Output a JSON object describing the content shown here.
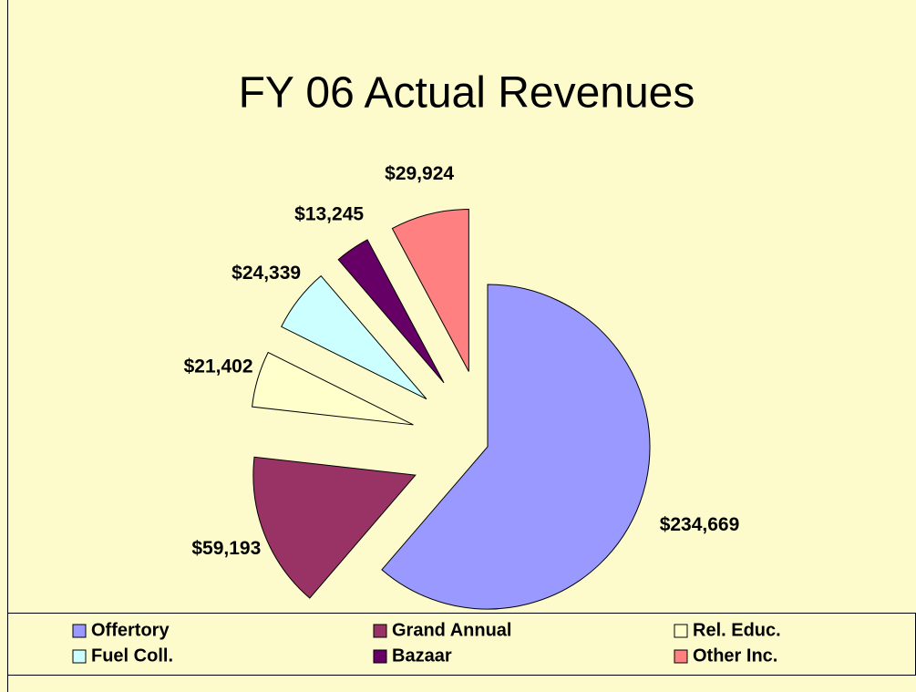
{
  "chart_data": {
    "type": "pie",
    "title": "FY 06 Actual Revenues",
    "categories": [
      "Offertory",
      "Grand Annual",
      "Rel. Educ.",
      "Fuel Coll.",
      "Bazaar",
      "Other Inc."
    ],
    "values": [
      234669,
      59193,
      21402,
      24339,
      13245,
      29924
    ],
    "value_labels": [
      "$234,669",
      "$59,193",
      "$21,402",
      "$24,339",
      "$13,245",
      "$29,924"
    ],
    "colors": [
      "#9999ff",
      "#993366",
      "#ffffcc",
      "#ccffff",
      "#660066",
      "#ff8080"
    ],
    "legend": "bottom"
  }
}
